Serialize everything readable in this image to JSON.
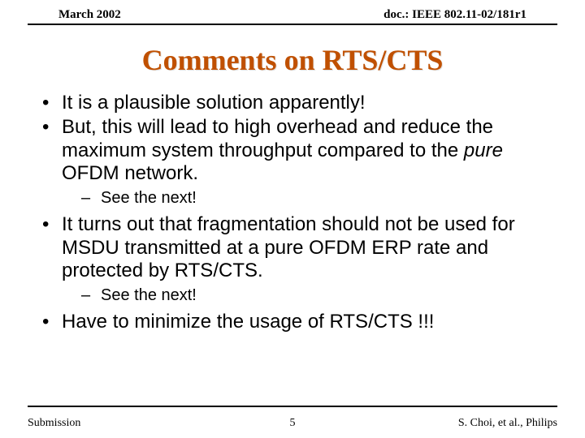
{
  "header": {
    "left": "March 2002",
    "right": "doc.: IEEE 802.11-02/181r1"
  },
  "title": "Comments on RTS/CTS",
  "bullets": [
    {
      "text": "It is a plausible solution apparently!"
    },
    {
      "text_pre": "But, this will lead to high overhead and reduce the maximum system throughput compared to the ",
      "em": "pure",
      "text_post": " OFDM network.",
      "sub": "See the next!"
    },
    {
      "text": "It turns out that fragmentation should not be used for MSDU transmitted at a pure OFDM ERP rate and protected by RTS/CTS.",
      "sub": "See the next!"
    },
    {
      "text": "Have to minimize the usage of RTS/CTS !!!"
    }
  ],
  "footer": {
    "left": "Submission",
    "page": "5",
    "right": "S. Choi, et al., Philips"
  },
  "colors": {
    "title": "#c05000",
    "text": "#000000",
    "bg": "#ffffff"
  }
}
